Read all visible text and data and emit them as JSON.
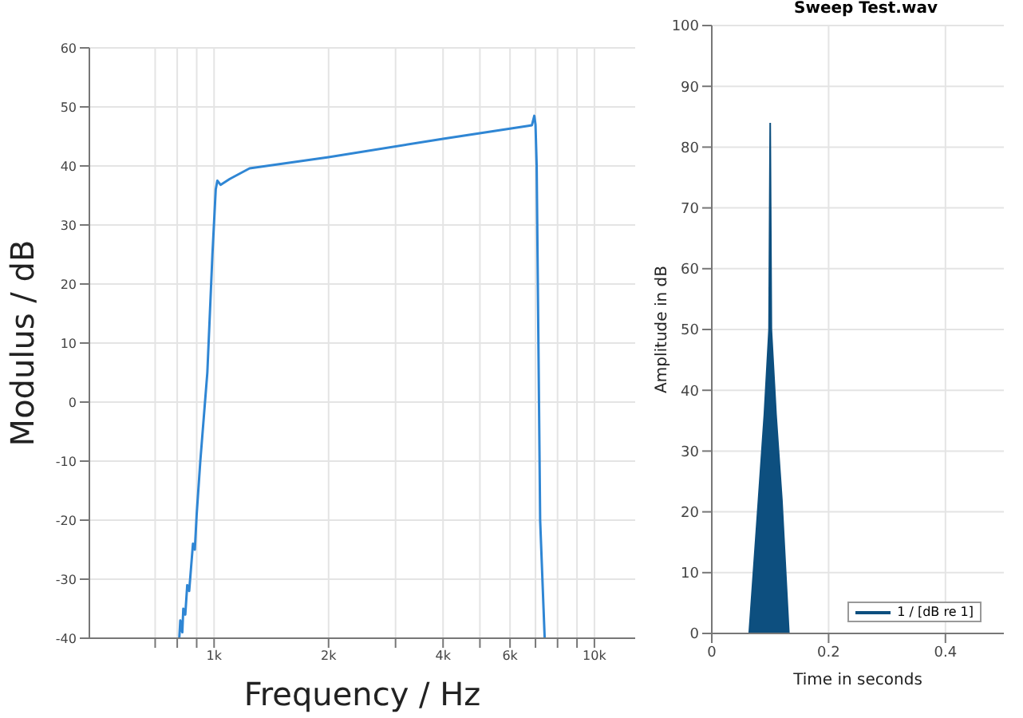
{
  "chart_data": [
    {
      "type": "line",
      "xlabel": "Frequency / Hz",
      "ylabel": "Modulus / dB",
      "log": "x",
      "grid": true,
      "xlim": [
        470,
        12800
      ],
      "xticks": [
        {
          "value": 700,
          "label": null
        },
        {
          "value": 800,
          "label": null
        },
        {
          "value": 900,
          "label": null
        },
        {
          "value": 1000,
          "label": "1k"
        },
        {
          "value": 2000,
          "label": "2k"
        },
        {
          "value": 3000,
          "label": null
        },
        {
          "value": 4000,
          "label": "4k"
        },
        {
          "value": 5000,
          "label": null
        },
        {
          "value": 6000,
          "label": "6k"
        },
        {
          "value": 7000,
          "label": null
        },
        {
          "value": 8000,
          "label": null
        },
        {
          "value": 9000,
          "label": null
        },
        {
          "value": 10000,
          "label": "10k"
        }
      ],
      "ylim": [
        -40,
        60
      ],
      "yticks": [
        -40,
        -30,
        -20,
        -10,
        0,
        10,
        20,
        30,
        40,
        50,
        60
      ],
      "series": [
        {
          "color": "#2f86d4",
          "x": [
            810,
            815,
            825,
            830,
            840,
            850,
            860,
            870,
            880,
            890,
            900,
            920,
            960,
            990,
            1010,
            1020,
            1040,
            1100,
            1240,
            2000,
            4000,
            6700,
            6850,
            6950,
            7000,
            7050,
            7200,
            7400
          ],
          "values": [
            -40,
            -37,
            -39,
            -35,
            -36,
            -31,
            -32,
            -28,
            -24,
            -25,
            -19,
            -10,
            5,
            25,
            36,
            37.5,
            36.8,
            37.8,
            39.6,
            41.5,
            44.6,
            46.8,
            46.9,
            48.5,
            47,
            40,
            -20,
            -40
          ]
        }
      ]
    },
    {
      "type": "area",
      "title": "Sweep Test.wav",
      "xlabel": "Time in seconds",
      "ylabel": "Amplitude in dB",
      "grid": true,
      "legend": "bottom right",
      "xlim": [
        0,
        0.5
      ],
      "xticks": [
        0,
        0.2,
        0.4
      ],
      "ylim": [
        0,
        100
      ],
      "yticks": [
        0,
        10,
        20,
        30,
        40,
        50,
        60,
        70,
        80,
        90,
        100
      ],
      "series": [
        {
          "name": "1 /  [dB re 1]",
          "color": "#0d4f7f",
          "x": [
            0.064,
            0.08,
            0.09,
            0.098,
            0.1,
            0.102,
            0.11,
            0.12,
            0.132
          ],
          "values": [
            0,
            22,
            36,
            50,
            84,
            50,
            36,
            22,
            0
          ]
        }
      ]
    }
  ]
}
